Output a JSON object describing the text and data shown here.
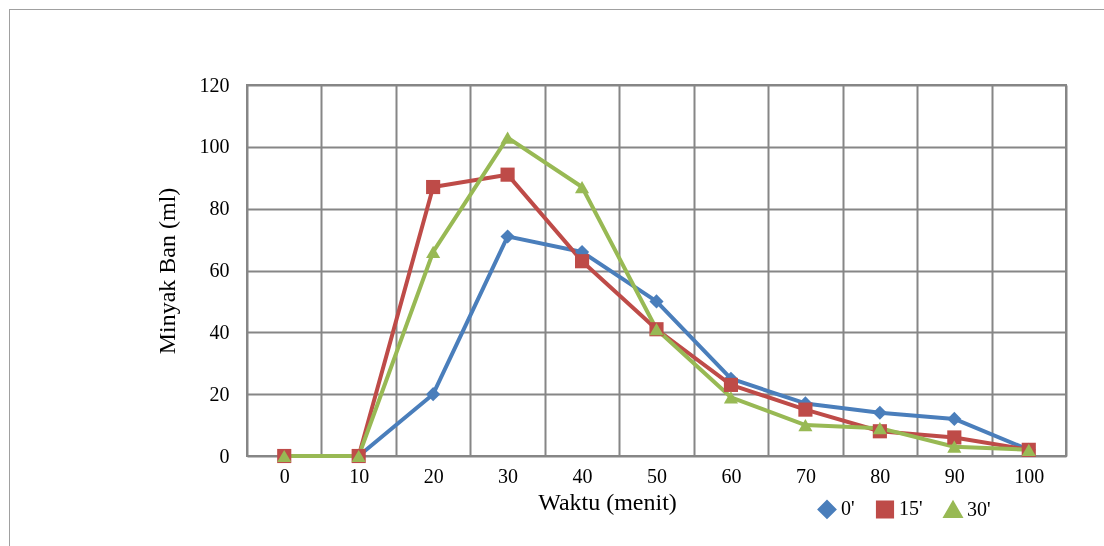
{
  "chart_data": {
    "type": "line",
    "xlabel": "Waktu (menit)",
    "ylabel": "Minyak Ban  (ml)",
    "categories": [
      "0",
      "10",
      "20",
      "30",
      "40",
      "50",
      "60",
      "70",
      "80",
      "90",
      "100"
    ],
    "series": [
      {
        "name": "0'",
        "color": "#4a7ebb",
        "marker": "diamond",
        "values": [
          0,
          0,
          20,
          71,
          66,
          50,
          25,
          17,
          14,
          12,
          2
        ]
      },
      {
        "name": "15'",
        "color": "#be4b48",
        "marker": "square",
        "values": [
          0,
          0,
          87,
          91,
          63,
          41,
          23,
          15,
          8,
          6,
          2
        ]
      },
      {
        "name": "30'",
        "color": "#98b954",
        "marker": "triangle",
        "values": [
          0,
          0,
          66,
          103,
          87,
          41,
          19,
          10,
          9,
          3,
          2
        ]
      }
    ],
    "ylim": [
      0,
      120
    ],
    "yticks": [
      0,
      20,
      40,
      60,
      80,
      100,
      120
    ],
    "grid": true,
    "legend": "bottom right",
    "line_style": "solid"
  }
}
